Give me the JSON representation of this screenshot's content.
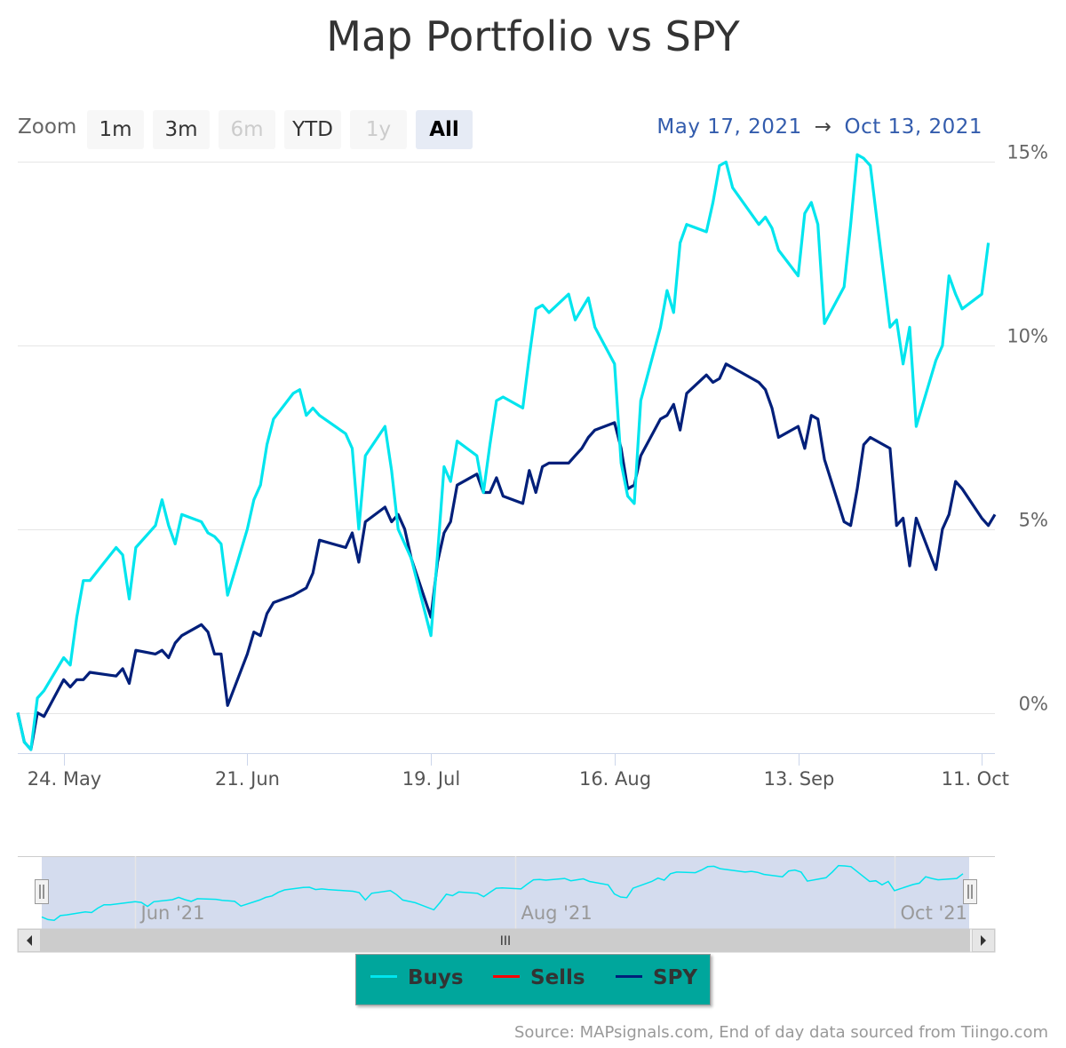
{
  "title": "Map Portfolio vs SPY",
  "zoom": {
    "label": "Zoom",
    "buttons": [
      {
        "label": "1m",
        "state": "enabled"
      },
      {
        "label": "3m",
        "state": "enabled"
      },
      {
        "label": "6m",
        "state": "disabled"
      },
      {
        "label": "YTD",
        "state": "enabled"
      },
      {
        "label": "1y",
        "state": "disabled"
      },
      {
        "label": "All",
        "state": "selected"
      }
    ]
  },
  "range": {
    "from": "May 17, 2021",
    "arrow": "→",
    "to": "Oct 13, 2021"
  },
  "credits": "Source: MAPsignals.com, End of day data sourced from Tiingo.com",
  "navigator": {
    "labels": [
      "Jun '21",
      "Aug '21",
      "Oct '21"
    ],
    "scroll_grip": "III",
    "handle_grip": "II"
  },
  "legend": [
    {
      "name": "Buys",
      "color": "#00e5ee"
    },
    {
      "name": "Sells",
      "color": "#ff0000"
    },
    {
      "name": "SPY",
      "color": "#001f7a"
    }
  ],
  "chart_data": {
    "type": "line",
    "title": "Map Portfolio vs SPY",
    "x_axis": {
      "type": "datetime",
      "start": "2021-05-17",
      "end": "2021-10-13",
      "tick_labels": [
        "24. May",
        "21. Jun",
        "19. Jul",
        "16. Aug",
        "13. Sep",
        "11. Oct"
      ]
    },
    "y_axis": {
      "ticks": [
        0,
        5,
        10,
        15
      ],
      "tick_labels": [
        "0%",
        "5%",
        "10%",
        "15%"
      ],
      "range": [
        -1.1,
        15.3
      ],
      "unit": "%"
    },
    "grid": true,
    "legend_position": "bottom-center",
    "series": [
      {
        "name": "Buys",
        "color": "#00e5ee",
        "values": [
          {
            "x": "2021-05-17",
            "y": 0
          },
          {
            "x": "2021-05-18",
            "y": -0.8
          },
          {
            "x": "2021-05-19",
            "y": -1.0
          },
          {
            "x": "2021-05-20",
            "y": 0.4
          },
          {
            "x": "2021-05-21",
            "y": 0.6
          },
          {
            "x": "2021-05-24",
            "y": 1.5
          },
          {
            "x": "2021-05-25",
            "y": 1.3
          },
          {
            "x": "2021-05-26",
            "y": 2.6
          },
          {
            "x": "2021-05-27",
            "y": 3.6
          },
          {
            "x": "2021-05-28",
            "y": 3.6
          },
          {
            "x": "2021-06-01",
            "y": 4.5
          },
          {
            "x": "2021-06-02",
            "y": 4.3
          },
          {
            "x": "2021-06-03",
            "y": 3.1
          },
          {
            "x": "2021-06-04",
            "y": 4.5
          },
          {
            "x": "2021-06-07",
            "y": 5.1
          },
          {
            "x": "2021-06-08",
            "y": 5.8
          },
          {
            "x": "2021-06-09",
            "y": 5.1
          },
          {
            "x": "2021-06-10",
            "y": 4.6
          },
          {
            "x": "2021-06-11",
            "y": 5.4
          },
          {
            "x": "2021-06-14",
            "y": 5.2
          },
          {
            "x": "2021-06-15",
            "y": 4.9
          },
          {
            "x": "2021-06-16",
            "y": 4.8
          },
          {
            "x": "2021-06-17",
            "y": 4.6
          },
          {
            "x": "2021-06-18",
            "y": 3.2
          },
          {
            "x": "2021-06-21",
            "y": 5.0
          },
          {
            "x": "2021-06-22",
            "y": 5.8
          },
          {
            "x": "2021-06-23",
            "y": 6.2
          },
          {
            "x": "2021-06-24",
            "y": 7.3
          },
          {
            "x": "2021-06-25",
            "y": 8.0
          },
          {
            "x": "2021-06-28",
            "y": 8.7
          },
          {
            "x": "2021-06-29",
            "y": 8.8
          },
          {
            "x": "2021-06-30",
            "y": 8.1
          },
          {
            "x": "2021-07-01",
            "y": 8.3
          },
          {
            "x": "2021-07-02",
            "y": 8.1
          },
          {
            "x": "2021-07-06",
            "y": 7.6
          },
          {
            "x": "2021-07-07",
            "y": 7.2
          },
          {
            "x": "2021-07-08",
            "y": 5.0
          },
          {
            "x": "2021-07-09",
            "y": 7.0
          },
          {
            "x": "2021-07-12",
            "y": 7.8
          },
          {
            "x": "2021-07-13",
            "y": 6.6
          },
          {
            "x": "2021-07-14",
            "y": 5.0
          },
          {
            "x": "2021-07-15",
            "y": 4.6
          },
          {
            "x": "2021-07-16",
            "y": 4.2
          },
          {
            "x": "2021-07-19",
            "y": 2.1
          },
          {
            "x": "2021-07-20",
            "y": 4.3
          },
          {
            "x": "2021-07-21",
            "y": 6.7
          },
          {
            "x": "2021-07-22",
            "y": 6.3
          },
          {
            "x": "2021-07-23",
            "y": 7.4
          },
          {
            "x": "2021-07-26",
            "y": 7.0
          },
          {
            "x": "2021-07-27",
            "y": 6.0
          },
          {
            "x": "2021-07-28",
            "y": 7.3
          },
          {
            "x": "2021-07-29",
            "y": 8.5
          },
          {
            "x": "2021-07-30",
            "y": 8.6
          },
          {
            "x": "2021-08-02",
            "y": 8.3
          },
          {
            "x": "2021-08-03",
            "y": 9.7
          },
          {
            "x": "2021-08-04",
            "y": 11.0
          },
          {
            "x": "2021-08-05",
            "y": 11.1
          },
          {
            "x": "2021-08-06",
            "y": 10.9
          },
          {
            "x": "2021-08-09",
            "y": 11.4
          },
          {
            "x": "2021-08-10",
            "y": 10.7
          },
          {
            "x": "2021-08-11",
            "y": 11.0
          },
          {
            "x": "2021-08-12",
            "y": 11.3
          },
          {
            "x": "2021-08-13",
            "y": 10.5
          },
          {
            "x": "2021-08-16",
            "y": 9.5
          },
          {
            "x": "2021-08-17",
            "y": 6.8
          },
          {
            "x": "2021-08-18",
            "y": 5.9
          },
          {
            "x": "2021-08-19",
            "y": 5.7
          },
          {
            "x": "2021-08-20",
            "y": 8.5
          },
          {
            "x": "2021-08-23",
            "y": 10.5
          },
          {
            "x": "2021-08-24",
            "y": 11.5
          },
          {
            "x": "2021-08-25",
            "y": 10.9
          },
          {
            "x": "2021-08-26",
            "y": 12.8
          },
          {
            "x": "2021-08-27",
            "y": 13.3
          },
          {
            "x": "2021-08-30",
            "y": 13.1
          },
          {
            "x": "2021-08-31",
            "y": 13.9
          },
          {
            "x": "2021-09-01",
            "y": 14.9
          },
          {
            "x": "2021-09-02",
            "y": 15.0
          },
          {
            "x": "2021-09-03",
            "y": 14.3
          },
          {
            "x": "2021-09-07",
            "y": 13.3
          },
          {
            "x": "2021-09-08",
            "y": 13.5
          },
          {
            "x": "2021-09-09",
            "y": 13.2
          },
          {
            "x": "2021-09-10",
            "y": 12.6
          },
          {
            "x": "2021-09-13",
            "y": 11.9
          },
          {
            "x": "2021-09-14",
            "y": 13.6
          },
          {
            "x": "2021-09-15",
            "y": 13.9
          },
          {
            "x": "2021-09-16",
            "y": 13.3
          },
          {
            "x": "2021-09-17",
            "y": 10.6
          },
          {
            "x": "2021-09-20",
            "y": 11.6
          },
          {
            "x": "2021-09-21",
            "y": 13.3
          },
          {
            "x": "2021-09-22",
            "y": 15.2
          },
          {
            "x": "2021-09-23",
            "y": 15.1
          },
          {
            "x": "2021-09-24",
            "y": 14.9
          },
          {
            "x": "2021-09-27",
            "y": 10.5
          },
          {
            "x": "2021-09-28",
            "y": 10.7
          },
          {
            "x": "2021-09-29",
            "y": 9.5
          },
          {
            "x": "2021-09-30",
            "y": 10.5
          },
          {
            "x": "2021-10-01",
            "y": 7.8
          },
          {
            "x": "2021-10-04",
            "y": 9.6
          },
          {
            "x": "2021-10-05",
            "y": 10.0
          },
          {
            "x": "2021-10-06",
            "y": 11.9
          },
          {
            "x": "2021-10-07",
            "y": 11.4
          },
          {
            "x": "2021-10-08",
            "y": 11.0
          },
          {
            "x": "2021-10-11",
            "y": 11.4
          },
          {
            "x": "2021-10-12",
            "y": 12.8
          }
        ]
      },
      {
        "name": "Sells",
        "color": "#ff0000",
        "values": []
      },
      {
        "name": "SPY",
        "color": "#001f7a",
        "values": [
          {
            "x": "2021-05-17",
            "y": 0
          },
          {
            "x": "2021-05-18",
            "y": -0.8
          },
          {
            "x": "2021-05-19",
            "y": -1.0
          },
          {
            "x": "2021-05-20",
            "y": 0
          },
          {
            "x": "2021-05-21",
            "y": -0.1
          },
          {
            "x": "2021-05-24",
            "y": 0.9
          },
          {
            "x": "2021-05-25",
            "y": 0.7
          },
          {
            "x": "2021-05-26",
            "y": 0.9
          },
          {
            "x": "2021-05-27",
            "y": 0.9
          },
          {
            "x": "2021-05-28",
            "y": 1.1
          },
          {
            "x": "2021-06-01",
            "y": 1.0
          },
          {
            "x": "2021-06-02",
            "y": 1.2
          },
          {
            "x": "2021-06-03",
            "y": 0.8
          },
          {
            "x": "2021-06-04",
            "y": 1.7
          },
          {
            "x": "2021-06-07",
            "y": 1.6
          },
          {
            "x": "2021-06-08",
            "y": 1.7
          },
          {
            "x": "2021-06-09",
            "y": 1.5
          },
          {
            "x": "2021-06-10",
            "y": 1.9
          },
          {
            "x": "2021-06-11",
            "y": 2.1
          },
          {
            "x": "2021-06-14",
            "y": 2.4
          },
          {
            "x": "2021-06-15",
            "y": 2.2
          },
          {
            "x": "2021-06-16",
            "y": 1.6
          },
          {
            "x": "2021-06-17",
            "y": 1.6
          },
          {
            "x": "2021-06-18",
            "y": 0.2
          },
          {
            "x": "2021-06-21",
            "y": 1.6
          },
          {
            "x": "2021-06-22",
            "y": 2.2
          },
          {
            "x": "2021-06-23",
            "y": 2.1
          },
          {
            "x": "2021-06-24",
            "y": 2.7
          },
          {
            "x": "2021-06-25",
            "y": 3.0
          },
          {
            "x": "2021-06-28",
            "y": 3.2
          },
          {
            "x": "2021-06-29",
            "y": 3.3
          },
          {
            "x": "2021-06-30",
            "y": 3.4
          },
          {
            "x": "2021-07-01",
            "y": 3.8
          },
          {
            "x": "2021-07-02",
            "y": 4.7
          },
          {
            "x": "2021-07-06",
            "y": 4.5
          },
          {
            "x": "2021-07-07",
            "y": 4.9
          },
          {
            "x": "2021-07-08",
            "y": 4.1
          },
          {
            "x": "2021-07-09",
            "y": 5.2
          },
          {
            "x": "2021-07-12",
            "y": 5.6
          },
          {
            "x": "2021-07-13",
            "y": 5.2
          },
          {
            "x": "2021-07-14",
            "y": 5.4
          },
          {
            "x": "2021-07-15",
            "y": 5.0
          },
          {
            "x": "2021-07-16",
            "y": 4.2
          },
          {
            "x": "2021-07-19",
            "y": 2.6
          },
          {
            "x": "2021-07-20",
            "y": 4.1
          },
          {
            "x": "2021-07-21",
            "y": 4.9
          },
          {
            "x": "2021-07-22",
            "y": 5.2
          },
          {
            "x": "2021-07-23",
            "y": 6.2
          },
          {
            "x": "2021-07-26",
            "y": 6.5
          },
          {
            "x": "2021-07-27",
            "y": 6.0
          },
          {
            "x": "2021-07-28",
            "y": 6.0
          },
          {
            "x": "2021-07-29",
            "y": 6.4
          },
          {
            "x": "2021-07-30",
            "y": 5.9
          },
          {
            "x": "2021-08-02",
            "y": 5.7
          },
          {
            "x": "2021-08-03",
            "y": 6.6
          },
          {
            "x": "2021-08-04",
            "y": 6.0
          },
          {
            "x": "2021-08-05",
            "y": 6.7
          },
          {
            "x": "2021-08-06",
            "y": 6.8
          },
          {
            "x": "2021-08-09",
            "y": 6.8
          },
          {
            "x": "2021-08-10",
            "y": 7.0
          },
          {
            "x": "2021-08-11",
            "y": 7.2
          },
          {
            "x": "2021-08-12",
            "y": 7.5
          },
          {
            "x": "2021-08-13",
            "y": 7.7
          },
          {
            "x": "2021-08-16",
            "y": 7.9
          },
          {
            "x": "2021-08-17",
            "y": 7.2
          },
          {
            "x": "2021-08-18",
            "y": 6.1
          },
          {
            "x": "2021-08-19",
            "y": 6.2
          },
          {
            "x": "2021-08-20",
            "y": 7.0
          },
          {
            "x": "2021-08-23",
            "y": 8.0
          },
          {
            "x": "2021-08-24",
            "y": 8.1
          },
          {
            "x": "2021-08-25",
            "y": 8.4
          },
          {
            "x": "2021-08-26",
            "y": 7.7
          },
          {
            "x": "2021-08-27",
            "y": 8.7
          },
          {
            "x": "2021-08-30",
            "y": 9.2
          },
          {
            "x": "2021-08-31",
            "y": 9.0
          },
          {
            "x": "2021-09-01",
            "y": 9.1
          },
          {
            "x": "2021-09-02",
            "y": 9.5
          },
          {
            "x": "2021-09-03",
            "y": 9.4
          },
          {
            "x": "2021-09-07",
            "y": 9.0
          },
          {
            "x": "2021-09-08",
            "y": 8.8
          },
          {
            "x": "2021-09-09",
            "y": 8.3
          },
          {
            "x": "2021-09-10",
            "y": 7.5
          },
          {
            "x": "2021-09-13",
            "y": 7.8
          },
          {
            "x": "2021-09-14",
            "y": 7.2
          },
          {
            "x": "2021-09-15",
            "y": 8.1
          },
          {
            "x": "2021-09-16",
            "y": 8.0
          },
          {
            "x": "2021-09-17",
            "y": 6.9
          },
          {
            "x": "2021-09-20",
            "y": 5.2
          },
          {
            "x": "2021-09-21",
            "y": 5.1
          },
          {
            "x": "2021-09-22",
            "y": 6.1
          },
          {
            "x": "2021-09-23",
            "y": 7.3
          },
          {
            "x": "2021-09-24",
            "y": 7.5
          },
          {
            "x": "2021-09-27",
            "y": 7.2
          },
          {
            "x": "2021-09-28",
            "y": 5.1
          },
          {
            "x": "2021-09-29",
            "y": 5.3
          },
          {
            "x": "2021-09-30",
            "y": 4.0
          },
          {
            "x": "2021-10-01",
            "y": 5.3
          },
          {
            "x": "2021-10-04",
            "y": 3.9
          },
          {
            "x": "2021-10-05",
            "y": 5.0
          },
          {
            "x": "2021-10-06",
            "y": 5.4
          },
          {
            "x": "2021-10-07",
            "y": 6.3
          },
          {
            "x": "2021-10-08",
            "y": 6.1
          },
          {
            "x": "2021-10-11",
            "y": 5.3
          },
          {
            "x": "2021-10-12",
            "y": 5.1
          },
          {
            "x": "2021-10-13",
            "y": 5.4
          }
        ]
      }
    ]
  }
}
